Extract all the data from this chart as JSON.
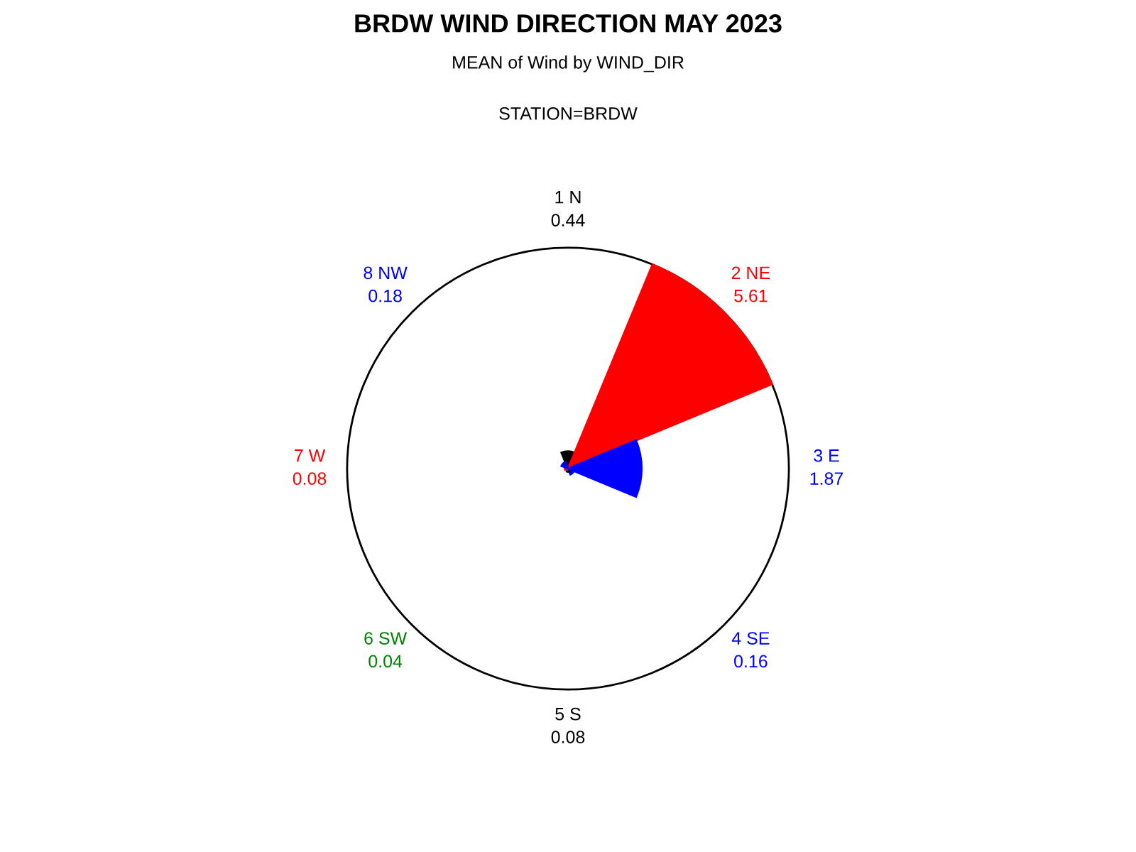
{
  "chart_data": {
    "type": "other",
    "title": "BRDW WIND DIRECTION MAY 2023",
    "subtitle": "MEAN of Wind by WIND_DIR",
    "annotations": [
      "STATION=BRDW"
    ],
    "categories": [
      "1 N",
      "2 NE",
      "3 E",
      "4 SE",
      "5 S",
      "6 SW",
      "7 W",
      "8 NW"
    ],
    "values": [
      0.44,
      5.61,
      1.87,
      0.16,
      0.08,
      0.04,
      0.08,
      0.18
    ],
    "colors": [
      "#000000",
      "#ff0000",
      "#0000ff",
      "#0000ff",
      "#000000",
      "#008000",
      "#ff0000",
      "#0000ff"
    ],
    "data_labels": true
  }
}
